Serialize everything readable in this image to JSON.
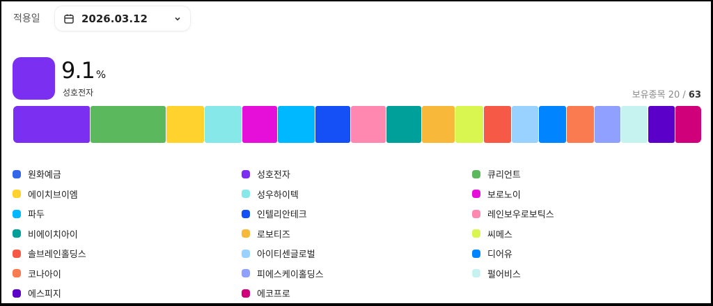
{
  "header": {
    "date_label": "적용일",
    "date_value": "2026.03.12",
    "calendar_icon": "calendar-icon",
    "dropdown_icon": "chevron-down-icon"
  },
  "selected": {
    "percent": "9.1",
    "unit": "%",
    "name": "성호전자",
    "color": "#7b2ff0"
  },
  "holdings": {
    "label": "보유종목",
    "shown": "20",
    "separator": " / ",
    "total": "63"
  },
  "chart_data": {
    "type": "bar",
    "orientation": "stacked-horizontal",
    "categories": [
      "성호전자",
      "큐리언트",
      "에이치브이엠",
      "성우하이텍",
      "보로노이",
      "파두",
      "인텔리안테크",
      "레인보우로보틱스",
      "비에이치아이",
      "로보티즈",
      "씨메스",
      "솔브레인홀딩스",
      "아이티센글로벌",
      "디어유",
      "코나아이",
      "피에스케이홀딩스",
      "펄어비스",
      "에스피지",
      "에코프로"
    ],
    "values": [
      9.1,
      8.9,
      4.5,
      4.3,
      4.2,
      4.3,
      4.2,
      4.1,
      4.1,
      3.9,
      3.3,
      3.2,
      3.2,
      3.2,
      3.2,
      3.1,
      3.1,
      3.1,
      3.1
    ],
    "colors": [
      "#7b2ff0",
      "#5cb85c",
      "#ffd22e",
      "#86e8e8",
      "#e60fd9",
      "#00b8ff",
      "#1450f5",
      "#ff88b0",
      "#00a09a",
      "#f8b93a",
      "#d8f550",
      "#f65a46",
      "#9ad2ff",
      "#0084ff",
      "#f97b4f",
      "#8fa0ff",
      "#c6f3ef",
      "#5a00c8",
      "#d0007a"
    ]
  },
  "legend": [
    {
      "label": "원화예금",
      "color": "#3366e8"
    },
    {
      "label": "성호전자",
      "color": "#7b2ff0"
    },
    {
      "label": "큐리언트",
      "color": "#5cb85c"
    },
    {
      "label": "에이치브이엠",
      "color": "#ffd22e"
    },
    {
      "label": "성우하이텍",
      "color": "#86e8e8"
    },
    {
      "label": "보로노이",
      "color": "#e60fd9"
    },
    {
      "label": "파두",
      "color": "#00b8ff"
    },
    {
      "label": "인텔리안테크",
      "color": "#1450f5"
    },
    {
      "label": "레인보우로보틱스",
      "color": "#ff88b0"
    },
    {
      "label": "비에이치아이",
      "color": "#00a09a"
    },
    {
      "label": "로보티즈",
      "color": "#f8b93a"
    },
    {
      "label": "씨메스",
      "color": "#d8f550"
    },
    {
      "label": "솔브레인홀딩스",
      "color": "#f65a46"
    },
    {
      "label": "아이티센글로벌",
      "color": "#9ad2ff"
    },
    {
      "label": "디어유",
      "color": "#0084ff"
    },
    {
      "label": "코나아이",
      "color": "#f97b4f"
    },
    {
      "label": "피에스케이홀딩스",
      "color": "#8fa0ff"
    },
    {
      "label": "펄어비스",
      "color": "#c6f3ef"
    },
    {
      "label": "에스피지",
      "color": "#5a00c8"
    },
    {
      "label": "에코프로",
      "color": "#d0007a"
    }
  ]
}
